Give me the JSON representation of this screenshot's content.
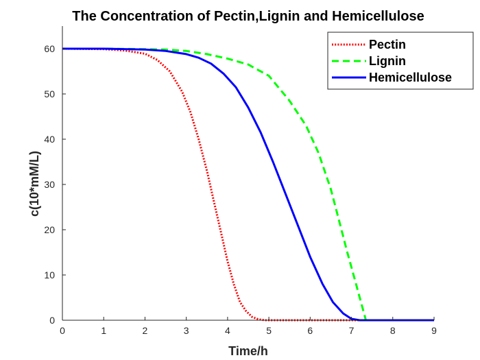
{
  "chart_data": {
    "type": "line",
    "title": "The Concentration of Pectin,Lignin and Hemicellulose",
    "xlabel": "Time/h",
    "ylabel": "c(10*mM/L)",
    "xlim": [
      0,
      9
    ],
    "ylim": [
      0,
      65
    ],
    "xticks": [
      "0",
      "1",
      "2",
      "3",
      "4",
      "5",
      "6",
      "7",
      "8",
      "9"
    ],
    "yticks": [
      "0",
      "10",
      "20",
      "30",
      "40",
      "50",
      "60"
    ],
    "grid": false,
    "legend_position": "top-right",
    "series": [
      {
        "name": "Pectin",
        "color": "#ff0000",
        "style": "dotted",
        "x": [
          0,
          1,
          1.5,
          2,
          2.3,
          2.6,
          2.9,
          3.1,
          3.3,
          3.5,
          3.7,
          3.85,
          4.0,
          4.15,
          4.3,
          4.45,
          4.6,
          4.75,
          4.9,
          5.0,
          6,
          7,
          8,
          9
        ],
        "y": [
          60,
          59.9,
          59.6,
          58.9,
          57.5,
          55,
          50.5,
          46,
          40,
          33,
          25,
          19,
          13,
          8,
          4,
          2,
          0.7,
          0.2,
          0,
          0,
          0,
          0,
          0,
          0
        ]
      },
      {
        "name": "Lignin",
        "color": "#00ff00",
        "style": "dashed",
        "x": [
          0,
          1,
          2,
          2.5,
          3,
          3.5,
          4,
          4.5,
          5,
          5.5,
          5.9,
          6.2,
          6.5,
          6.7,
          6.9,
          7.05,
          7.2,
          7.35,
          8,
          9
        ],
        "y": [
          60,
          60,
          59.9,
          59.8,
          59.5,
          58.8,
          57.8,
          56.5,
          54,
          48.5,
          43,
          37,
          29,
          22,
          15,
          10,
          5,
          0,
          0,
          0
        ]
      },
      {
        "name": "Hemicellulose",
        "color": "#0000ff",
        "style": "solid",
        "x": [
          0,
          1,
          2,
          2.5,
          3,
          3.3,
          3.6,
          3.9,
          4.2,
          4.5,
          4.8,
          5.1,
          5.4,
          5.7,
          6.0,
          6.3,
          6.55,
          6.8,
          7.0,
          7.2,
          8,
          9
        ],
        "y": [
          60,
          60,
          59.8,
          59.5,
          58.8,
          58,
          56.7,
          54.5,
          51.5,
          47,
          41.5,
          35,
          28,
          21,
          14,
          8,
          4,
          1.5,
          0.3,
          0,
          0,
          0
        ]
      }
    ]
  }
}
